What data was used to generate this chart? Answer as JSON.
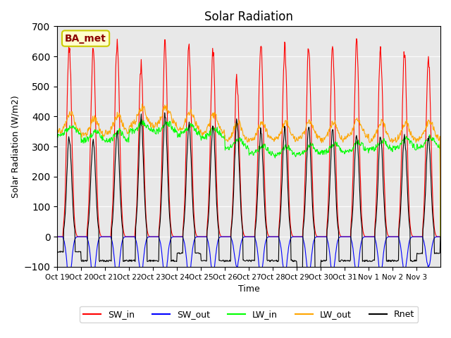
{
  "title": "Solar Radiation",
  "ylabel": "Solar Radiation (W/m2)",
  "xlabel": "Time",
  "ylim": [
    -100,
    700
  ],
  "yticks": [
    -100,
    0,
    100,
    200,
    300,
    400,
    500,
    600,
    700
  ],
  "xtick_labels": [
    "Oct 19",
    "Oct 20",
    "Oct 21",
    "Oct 22",
    "Oct 23",
    "Oct 24",
    "Oct 25",
    "Oct 26",
    "Oct 27",
    "Oct 28",
    "Oct 29",
    "Oct 30",
    "Oct 31",
    "Nov 1",
    "Nov 2",
    "Nov 3"
  ],
  "legend_labels": [
    "SW_in",
    "SW_out",
    "LW_in",
    "LW_out",
    "Rnet"
  ],
  "legend_colors": [
    "red",
    "blue",
    "lime",
    "orange",
    "black"
  ],
  "annotation_text": "BA_met",
  "annotation_bg": "#ffffcc",
  "annotation_border": "#cccc00",
  "bg_color": "#e8e8e8",
  "n_days": 16,
  "dt_hours": 0.5,
  "SW_in_peak": [
    660,
    655,
    670,
    595,
    665,
    660,
    640,
    545,
    665,
    660,
    660,
    665,
    685,
    650,
    640,
    620
  ],
  "SW_out_peak": [
    150,
    145,
    150,
    130,
    140,
    135,
    130,
    105,
    130,
    135,
    135,
    130,
    130,
    125,
    125,
    105
  ],
  "LW_in_base": [
    340,
    320,
    320,
    350,
    350,
    340,
    330,
    295,
    275,
    270,
    275,
    280,
    285,
    290,
    295,
    300
  ],
  "LW_out_base": [
    350,
    335,
    345,
    370,
    370,
    355,
    345,
    320,
    320,
    320,
    325,
    320,
    330,
    320,
    320,
    325
  ],
  "Rnet_peak": [
    330,
    320,
    340,
    395,
    405,
    380,
    375,
    385,
    350,
    365,
    360,
    350,
    340,
    335,
    330,
    330
  ],
  "Rnet_night": [
    -50,
    -80,
    -80,
    -80,
    -80,
    -55,
    -80,
    -80,
    -80,
    -80,
    -105,
    -80,
    -80,
    -80,
    -80,
    -55
  ]
}
